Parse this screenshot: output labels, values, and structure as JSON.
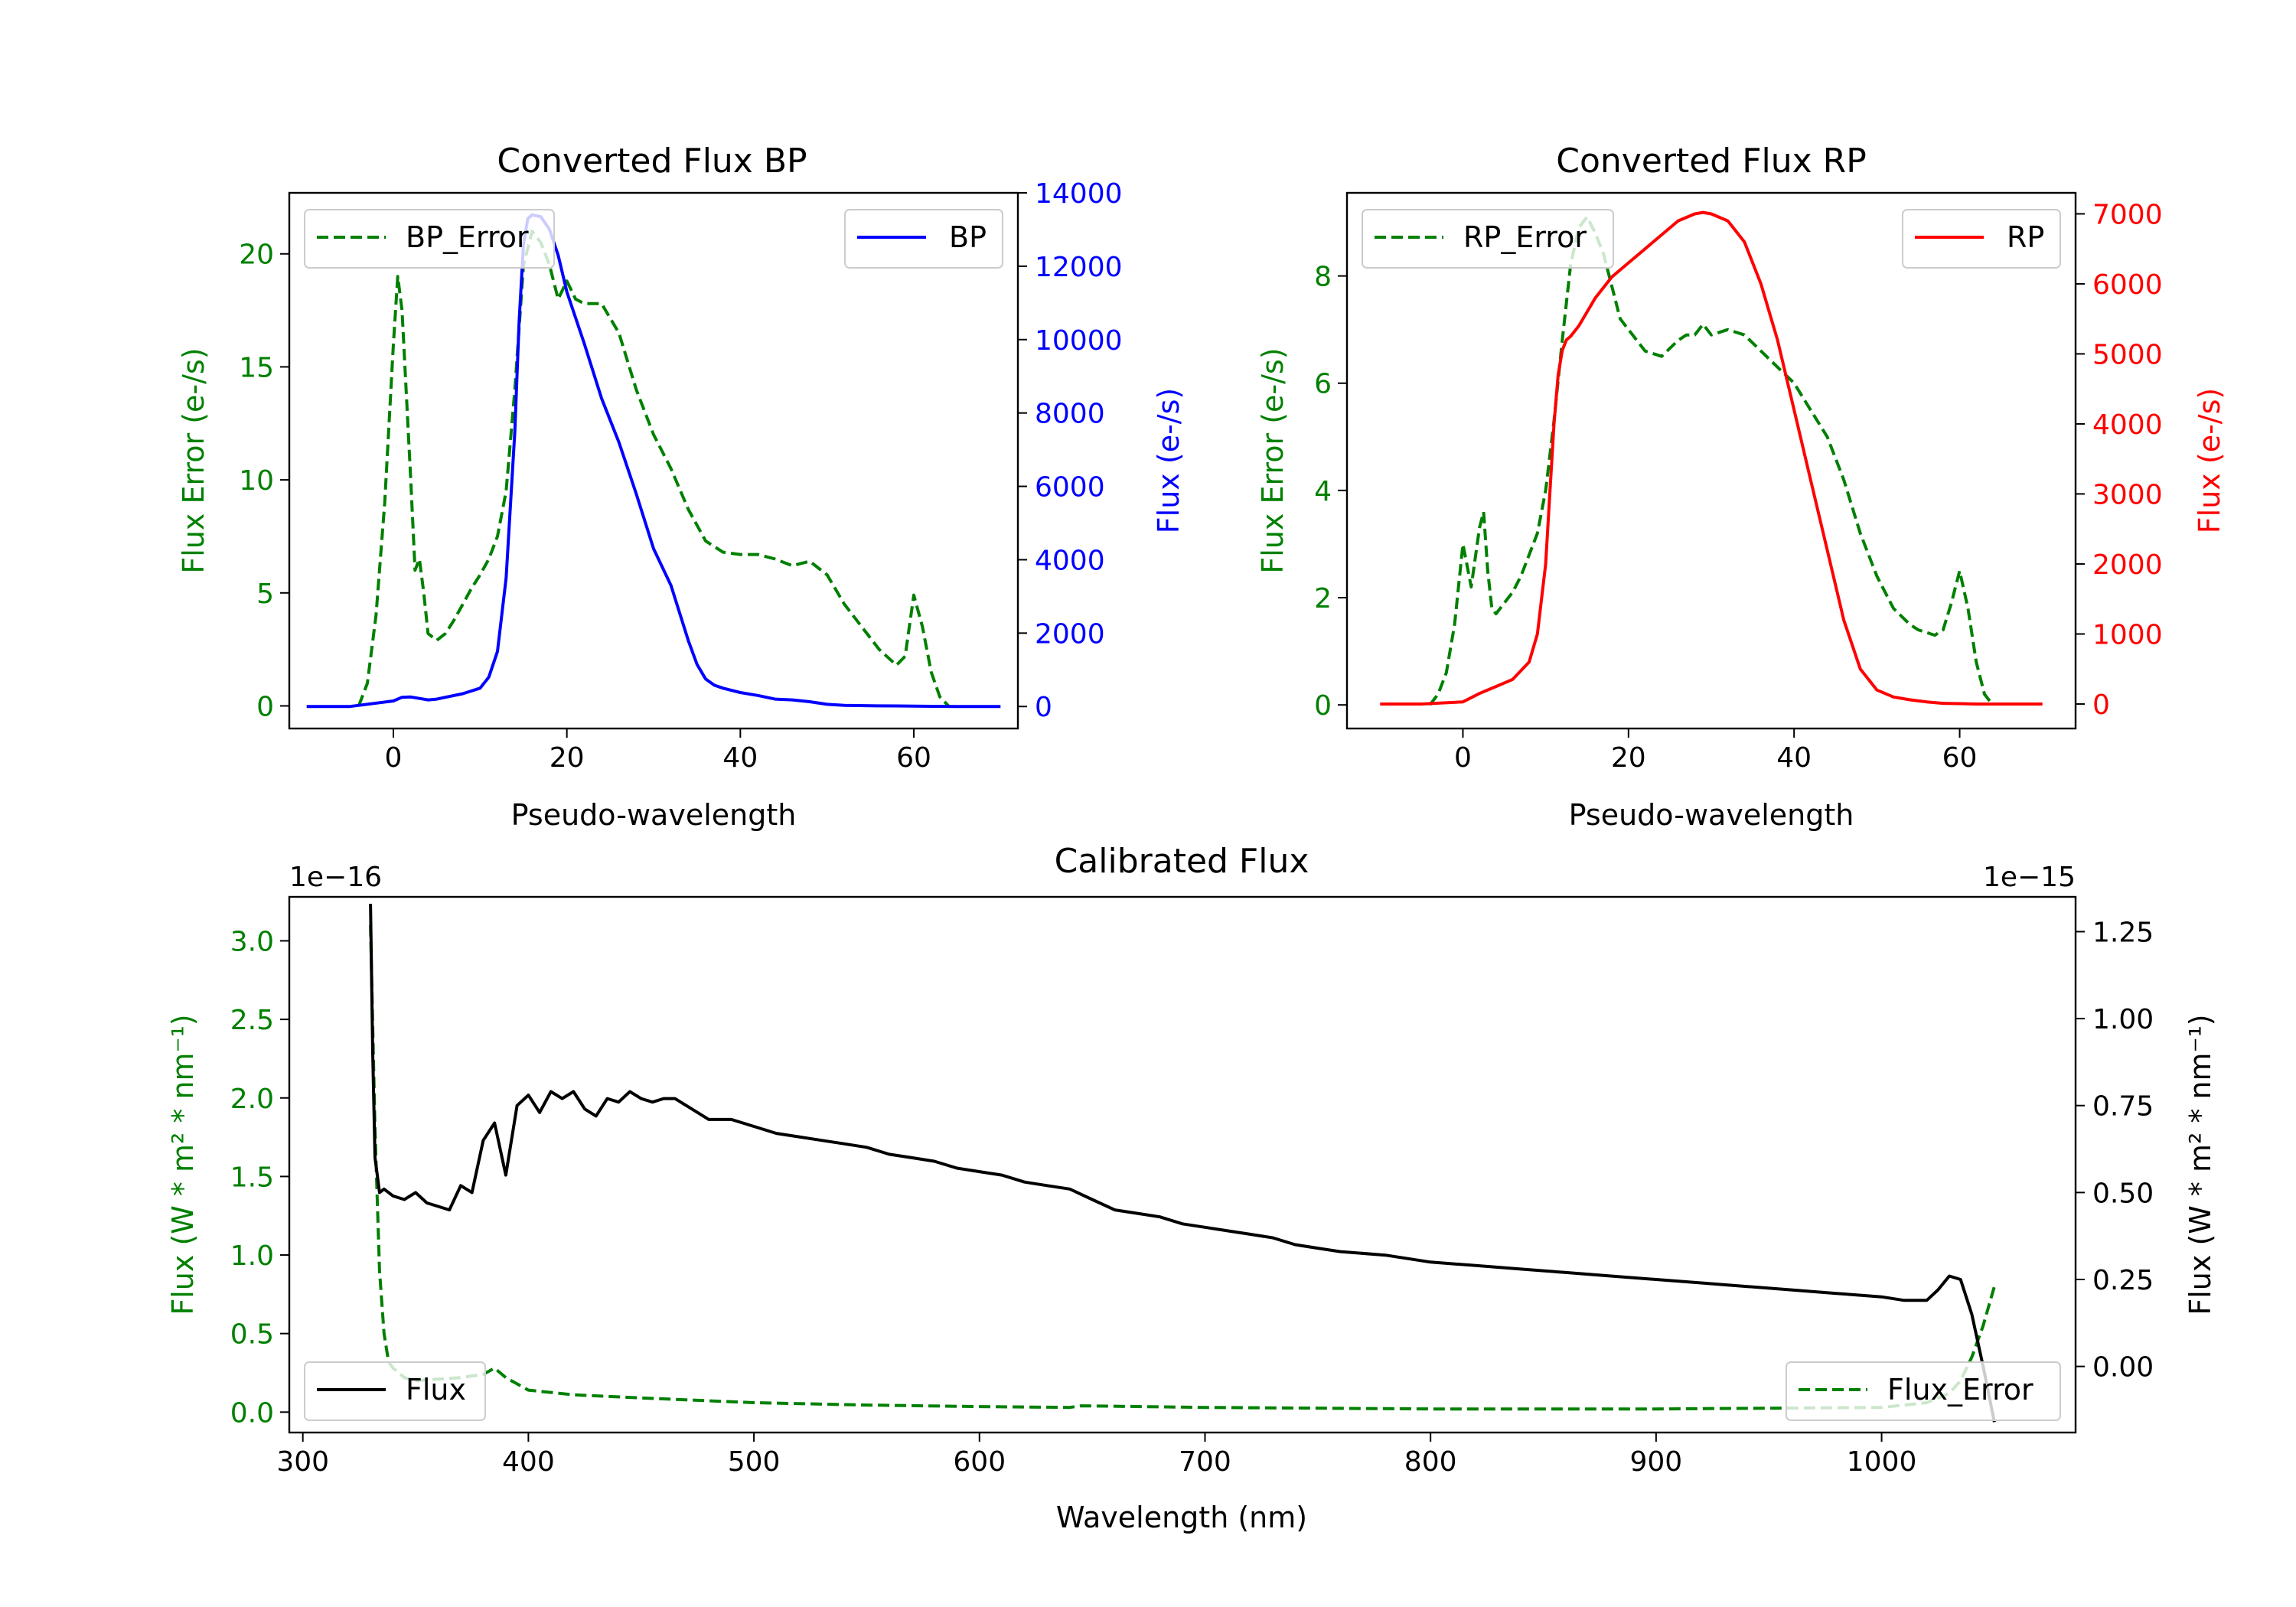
{
  "colors": {
    "error": "#008000",
    "bp": "#0000ff",
    "rp": "#ff0000",
    "flux": "#000000"
  },
  "chart_data": [
    {
      "type": "line",
      "title": "Converted Flux BP",
      "xlabel": "Pseudo-wavelength",
      "ylabel_left": "Flux Error (e-/s)",
      "ylabel_right": "Flux (e-/s)",
      "xlim": [
        -12,
        72
      ],
      "ylim_left": [
        -1,
        22.7
      ],
      "ylim_right": [
        -600,
        14000
      ],
      "xticks": [
        "0",
        "20",
        "40",
        "60"
      ],
      "xtick_values": [
        0,
        20,
        40,
        60
      ],
      "yticks_left": [
        "0",
        "5",
        "10",
        "15",
        "20"
      ],
      "ytick_values_left": [
        0,
        5,
        10,
        15,
        20
      ],
      "yticks_right": [
        "0",
        "2000",
        "4000",
        "6000",
        "8000",
        "10000",
        "12000",
        "14000"
      ],
      "ytick_values_right": [
        0,
        2000,
        4000,
        6000,
        8000,
        10000,
        12000,
        14000
      ],
      "legend_left": "BP_Error",
      "legend_right": "BP",
      "series": [
        {
          "name": "BP_Error",
          "axis": "left",
          "style": "dashed",
          "x": [
            -4,
            -3,
            -2,
            -1,
            0,
            0.5,
            1,
            2,
            2.5,
            3,
            3.5,
            4,
            5,
            6,
            7,
            8,
            9,
            10,
            11,
            12,
            13,
            14,
            15,
            16,
            17,
            18,
            19,
            20,
            21,
            22,
            24,
            26,
            28,
            30,
            32,
            34,
            36,
            38,
            40,
            42,
            44,
            46,
            48,
            50,
            52,
            54,
            56,
            58,
            59,
            60,
            61,
            62,
            63,
            64
          ],
          "values": [
            0,
            1,
            4,
            9,
            16,
            19,
            17.5,
            10,
            6,
            6.5,
            5,
            3.2,
            2.9,
            3.2,
            3.8,
            4.5,
            5.2,
            5.8,
            6.5,
            7.5,
            9.5,
            14,
            19.5,
            21,
            20.5,
            19.5,
            18,
            18.8,
            18,
            17.8,
            17.8,
            16.5,
            14,
            12,
            10.5,
            8.7,
            7.3,
            6.8,
            6.7,
            6.7,
            6.5,
            6.2,
            6.4,
            5.8,
            4.5,
            3.5,
            2.5,
            1.8,
            2.2,
            4.9,
            3.5,
            1.5,
            0.4,
            0
          ]
        },
        {
          "name": "BP",
          "axis": "right",
          "style": "solid",
          "x": [
            -10,
            -5,
            0,
            1,
            2,
            3,
            4,
            5,
            6,
            8,
            10,
            11,
            12,
            13,
            14,
            14.5,
            15,
            15.5,
            16,
            17,
            18,
            19,
            20,
            22,
            24,
            26,
            28,
            30,
            32,
            34,
            35,
            36,
            37,
            38,
            40,
            42,
            44,
            46,
            48,
            50,
            52,
            55,
            58,
            60,
            62,
            65,
            70
          ],
          "values": [
            0,
            0,
            150,
            250,
            260,
            220,
            180,
            200,
            250,
            350,
            500,
            800,
            1500,
            3500,
            7500,
            10500,
            12600,
            13300,
            13400,
            13350,
            13000,
            12300,
            11300,
            9900,
            8400,
            7200,
            5800,
            4300,
            3300,
            1800,
            1150,
            750,
            580,
            500,
            380,
            300,
            200,
            180,
            130,
            60,
            30,
            20,
            15,
            10,
            5,
            0,
            0
          ]
        }
      ]
    },
    {
      "type": "line",
      "title": "Converted Flux RP",
      "xlabel": "Pseudo-wavelength",
      "ylabel_left": "Flux Error (e-/s)",
      "ylabel_right": "Flux (e-/s)",
      "xlim": [
        -14,
        74
      ],
      "ylim_left": [
        -0.44,
        9.55
      ],
      "ylim_right": [
        -350,
        7300
      ],
      "xticks": [
        "0",
        "20",
        "40",
        "60"
      ],
      "xtick_values": [
        0,
        20,
        40,
        60
      ],
      "yticks_left": [
        "0",
        "2",
        "4",
        "6",
        "8"
      ],
      "ytick_values_left": [
        0,
        2,
        4,
        6,
        8
      ],
      "yticks_right": [
        "0",
        "1000",
        "2000",
        "3000",
        "4000",
        "5000",
        "6000",
        "7000"
      ],
      "ytick_values_right": [
        0,
        1000,
        2000,
        3000,
        4000,
        5000,
        6000,
        7000
      ],
      "legend_left": "RP_Error",
      "legend_right": "RP",
      "series": [
        {
          "name": "RP_Error",
          "axis": "left",
          "style": "dashed",
          "x": [
            -4,
            -3,
            -2,
            -1,
            0,
            1,
            2,
            2.5,
            3,
            3.5,
            4,
            5,
            6,
            7,
            8,
            9,
            10,
            11,
            12,
            13,
            14,
            15,
            16,
            17,
            18,
            19,
            20,
            22,
            24,
            26,
            27,
            28,
            29,
            30,
            32,
            34,
            36,
            38,
            40,
            42,
            44,
            46,
            48,
            50,
            52,
            54,
            55,
            56,
            57,
            58,
            59,
            60,
            61,
            62,
            63,
            64
          ],
          "values": [
            0,
            0.2,
            0.6,
            1.5,
            3,
            2.2,
            3.3,
            3.6,
            2.5,
            1.8,
            1.7,
            1.9,
            2.1,
            2.4,
            2.8,
            3.2,
            4,
            5.3,
            6.8,
            8.2,
            8.9,
            9.1,
            8.8,
            8.4,
            7.8,
            7.2,
            7,
            6.6,
            6.5,
            6.8,
            6.9,
            6.9,
            7.1,
            6.9,
            7,
            6.9,
            6.6,
            6.3,
            6,
            5.5,
            5,
            4.2,
            3.2,
            2.4,
            1.8,
            1.5,
            1.4,
            1.35,
            1.3,
            1.4,
            1.9,
            2.5,
            1.8,
            0.8,
            0.2,
            0
          ]
        },
        {
          "name": "RP",
          "axis": "right",
          "style": "solid",
          "x": [
            -10,
            -5,
            0,
            2,
            4,
            6,
            8,
            9,
            10,
            10.5,
            11,
            11.5,
            12,
            12.5,
            13,
            14,
            15,
            16,
            18,
            20,
            22,
            24,
            26,
            28,
            29,
            30,
            32,
            34,
            36,
            38,
            40,
            42,
            44,
            46,
            48,
            50,
            52,
            54,
            56,
            58,
            60,
            62,
            65,
            70
          ],
          "values": [
            0,
            0,
            30,
            150,
            250,
            350,
            600,
            1000,
            2000,
            3000,
            4000,
            4700,
            5050,
            5200,
            5250,
            5400,
            5600,
            5800,
            6100,
            6300,
            6500,
            6700,
            6900,
            7000,
            7020,
            7000,
            6900,
            6600,
            6000,
            5200,
            4200,
            3200,
            2200,
            1200,
            500,
            200,
            100,
            60,
            30,
            10,
            5,
            0,
            0,
            0
          ]
        }
      ]
    },
    {
      "type": "line",
      "title": "Calibrated Flux",
      "xlabel": "Wavelength (nm)",
      "ylabel_left": "Flux (W * m² * nm⁻¹)",
      "ylabel_right": "Flux (W * m² * nm⁻¹)",
      "offset_left": "1e−16",
      "offset_right": "1e−15",
      "xlim": [
        294,
        1086
      ],
      "ylim_left": [
        -0.13,
        3.28
      ],
      "ylim_right": [
        -0.19,
        1.35
      ],
      "xticks": [
        "300",
        "400",
        "500",
        "600",
        "700",
        "800",
        "900",
        "1000"
      ],
      "xtick_values": [
        300,
        400,
        500,
        600,
        700,
        800,
        900,
        1000
      ],
      "yticks_left": [
        "0.0",
        "0.5",
        "1.0",
        "1.5",
        "2.0",
        "2.5",
        "3.0"
      ],
      "ytick_values_left": [
        0,
        0.5,
        1.0,
        1.5,
        2.0,
        2.5,
        3.0
      ],
      "yticks_right": [
        "0.00",
        "0.25",
        "0.50",
        "0.75",
        "1.00",
        "1.25"
      ],
      "ytick_values_right": [
        0,
        0.25,
        0.5,
        0.75,
        1.0,
        1.25
      ],
      "legend_left": "Flux",
      "legend_right": "Flux_Error",
      "series": [
        {
          "name": "Flux_Error",
          "axis": "left",
          "style": "dashed",
          "x": [
            330,
            332,
            334,
            336,
            338,
            340,
            345,
            350,
            360,
            370,
            380,
            385,
            390,
            400,
            420,
            450,
            500,
            550,
            600,
            640,
            645,
            700,
            800,
            900,
            1000,
            1020,
            1030,
            1035,
            1040,
            1045,
            1050
          ],
          "values": [
            3.1,
            1.8,
            0.9,
            0.5,
            0.32,
            0.28,
            0.22,
            0.2,
            0.21,
            0.22,
            0.24,
            0.28,
            0.22,
            0.14,
            0.11,
            0.09,
            0.06,
            0.045,
            0.035,
            0.03,
            0.04,
            0.03,
            0.02,
            0.02,
            0.03,
            0.06,
            0.12,
            0.2,
            0.35,
            0.55,
            0.8
          ]
        },
        {
          "name": "Flux",
          "axis": "right",
          "style": "solid",
          "x": [
            330,
            331,
            332,
            334,
            336,
            340,
            345,
            350,
            355,
            360,
            365,
            370,
            375,
            380,
            385,
            390,
            395,
            400,
            405,
            410,
            415,
            420,
            425,
            430,
            435,
            440,
            445,
            450,
            455,
            460,
            465,
            470,
            475,
            480,
            490,
            500,
            510,
            520,
            530,
            540,
            550,
            560,
            570,
            580,
            590,
            600,
            610,
            620,
            630,
            640,
            650,
            660,
            670,
            680,
            690,
            700,
            710,
            720,
            730,
            740,
            750,
            760,
            780,
            800,
            820,
            840,
            860,
            880,
            900,
            920,
            940,
            960,
            980,
            1000,
            1010,
            1020,
            1025,
            1030,
            1035,
            1040,
            1045,
            1050
          ],
          "values": [
            1.33,
            0.9,
            0.6,
            0.5,
            0.51,
            0.49,
            0.48,
            0.5,
            0.47,
            0.46,
            0.45,
            0.52,
            0.5,
            0.65,
            0.7,
            0.55,
            0.75,
            0.78,
            0.73,
            0.79,
            0.77,
            0.79,
            0.74,
            0.72,
            0.77,
            0.76,
            0.79,
            0.77,
            0.76,
            0.77,
            0.77,
            0.75,
            0.73,
            0.71,
            0.71,
            0.69,
            0.67,
            0.66,
            0.65,
            0.64,
            0.63,
            0.61,
            0.6,
            0.59,
            0.57,
            0.56,
            0.55,
            0.53,
            0.52,
            0.51,
            0.48,
            0.45,
            0.44,
            0.43,
            0.41,
            0.4,
            0.39,
            0.38,
            0.37,
            0.35,
            0.34,
            0.33,
            0.32,
            0.3,
            0.29,
            0.28,
            0.27,
            0.26,
            0.25,
            0.24,
            0.23,
            0.22,
            0.21,
            0.2,
            0.19,
            0.19,
            0.22,
            0.26,
            0.25,
            0.15,
            0.0,
            -0.16
          ]
        }
      ]
    }
  ]
}
